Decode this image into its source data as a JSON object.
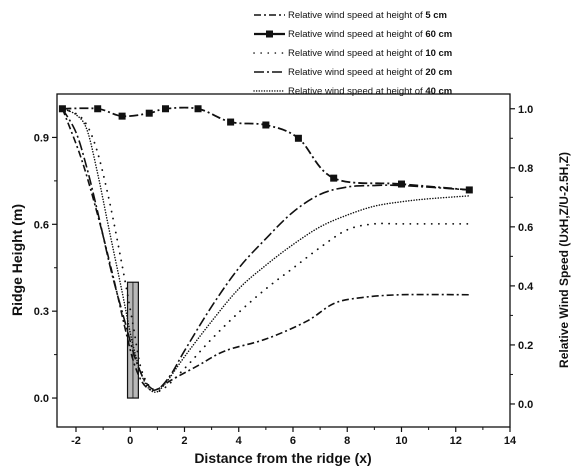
{
  "chart_data": {
    "type": "line",
    "xlabel": "Distance from the ridge (x)",
    "ylabel_left": "Ridge Height (m)",
    "ylabel_right": "Relative Wind Speed  (UxH,Z/U-2.5H,Z)",
    "xlim": [
      -2.7,
      14
    ],
    "ylim_left": [
      -0.1,
      1.05
    ],
    "ylim_right": [
      -0.078,
      1.05
    ],
    "xticks": [
      -2,
      0,
      2,
      4,
      6,
      8,
      10,
      12,
      14
    ],
    "xtick_labels": [
      "-2",
      "0",
      "2",
      "4",
      "6",
      "8",
      "10",
      "12",
      "14"
    ],
    "yticks_left": [
      0.0,
      0.3,
      0.6,
      0.9
    ],
    "ytick_labels_left": [
      "0.0",
      "0.3",
      "0.6",
      "0.9"
    ],
    "yticks_right": [
      0.0,
      0.2,
      0.4,
      0.6,
      0.8,
      1.0
    ],
    "ytick_labels_right": [
      "0.0",
      "0.2",
      "0.4",
      "0.6",
      "0.8",
      "1.0"
    ],
    "grid": false,
    "legend_position": "top-right, above plot",
    "ridge": {
      "x_from": -0.1,
      "x_to": 0.3,
      "height": 0.4
    },
    "series": [
      {
        "name": "Relative wind speed at  height of",
        "height_label": "5 cm",
        "style": "dash-dot",
        "x": [
          -2.5,
          -1.8,
          -1.2,
          -0.6,
          -0.2,
          0.1,
          0.4,
          0.7,
          1.0,
          1.5,
          2.5,
          3.5,
          5.0,
          6.5,
          7.5,
          8.5,
          10.0,
          12.5
        ],
        "y": [
          1.0,
          0.83,
          0.64,
          0.42,
          0.26,
          0.15,
          0.08,
          0.05,
          0.05,
          0.08,
          0.13,
          0.18,
          0.22,
          0.28,
          0.34,
          0.36,
          0.37,
          0.37
        ]
      },
      {
        "name": "Relative wind speed at  height of",
        "height_label": "60 cm",
        "style": "dash-dot-markers",
        "x": [
          -2.5,
          -1.2,
          -0.3,
          0.7,
          1.3,
          2.5,
          3.7,
          5.0,
          6.2,
          7.5,
          10.0,
          12.5
        ],
        "y": [
          1.0,
          1.0,
          0.975,
          0.985,
          1.0,
          1.0,
          0.955,
          0.945,
          0.9,
          0.765,
          0.745,
          0.725
        ],
        "markers": [
          [
            -2.5,
            1.0
          ],
          [
            -1.2,
            1.0
          ],
          [
            -0.3,
            0.975
          ],
          [
            0.7,
            0.985
          ],
          [
            1.3,
            1.0
          ],
          [
            2.5,
            1.0
          ],
          [
            3.7,
            0.955
          ],
          [
            5.0,
            0.945
          ],
          [
            6.2,
            0.9
          ],
          [
            7.5,
            0.765
          ],
          [
            10.0,
            0.745
          ],
          [
            12.5,
            0.725
          ]
        ]
      },
      {
        "name": "Relative wind speed at  height of",
        "height_label": "10 cm",
        "style": "sparse-dots",
        "x": [
          -2.5,
          -1.8,
          -1.3,
          -0.8,
          -0.3,
          0.1,
          0.4,
          0.8,
          1.2,
          2.0,
          3.0,
          4.0,
          5.0,
          6.0,
          7.0,
          8.0,
          9.0,
          10.0,
          12.5
        ],
        "y": [
          1.0,
          0.97,
          0.88,
          0.7,
          0.47,
          0.27,
          0.12,
          0.05,
          0.05,
          0.12,
          0.22,
          0.31,
          0.39,
          0.46,
          0.53,
          0.59,
          0.61,
          0.61,
          0.61
        ]
      },
      {
        "name": "Relative wind speed at  height of",
        "height_label": "20 cm",
        "style": "long-dash-dot",
        "x": [
          -2.5,
          -2.0,
          -1.6,
          -1.2,
          -0.7,
          -0.2,
          0.2,
          0.6,
          1.0,
          1.5,
          2.0,
          3.0,
          4.0,
          5.0,
          6.0,
          7.0,
          8.0,
          9.0,
          10.0,
          12.5
        ],
        "y": [
          1.0,
          0.92,
          0.8,
          0.65,
          0.45,
          0.28,
          0.15,
          0.07,
          0.05,
          0.1,
          0.18,
          0.33,
          0.46,
          0.56,
          0.65,
          0.71,
          0.735,
          0.74,
          0.74,
          0.725
        ]
      },
      {
        "name": "Relative wind speed at  height of",
        "height_label": "40 cm",
        "style": "dense-dots",
        "x": [
          -2.5,
          -2.0,
          -1.6,
          -1.2,
          -0.8,
          -0.3,
          0.1,
          0.5,
          0.9,
          1.3,
          2.0,
          3.0,
          4.0,
          5.0,
          6.0,
          7.0,
          8.0,
          9.0,
          10.0,
          11.0,
          12.5
        ],
        "y": [
          1.0,
          0.98,
          0.93,
          0.78,
          0.6,
          0.38,
          0.2,
          0.08,
          0.04,
          0.07,
          0.16,
          0.28,
          0.39,
          0.47,
          0.54,
          0.6,
          0.64,
          0.67,
          0.685,
          0.695,
          0.705
        ]
      }
    ]
  }
}
